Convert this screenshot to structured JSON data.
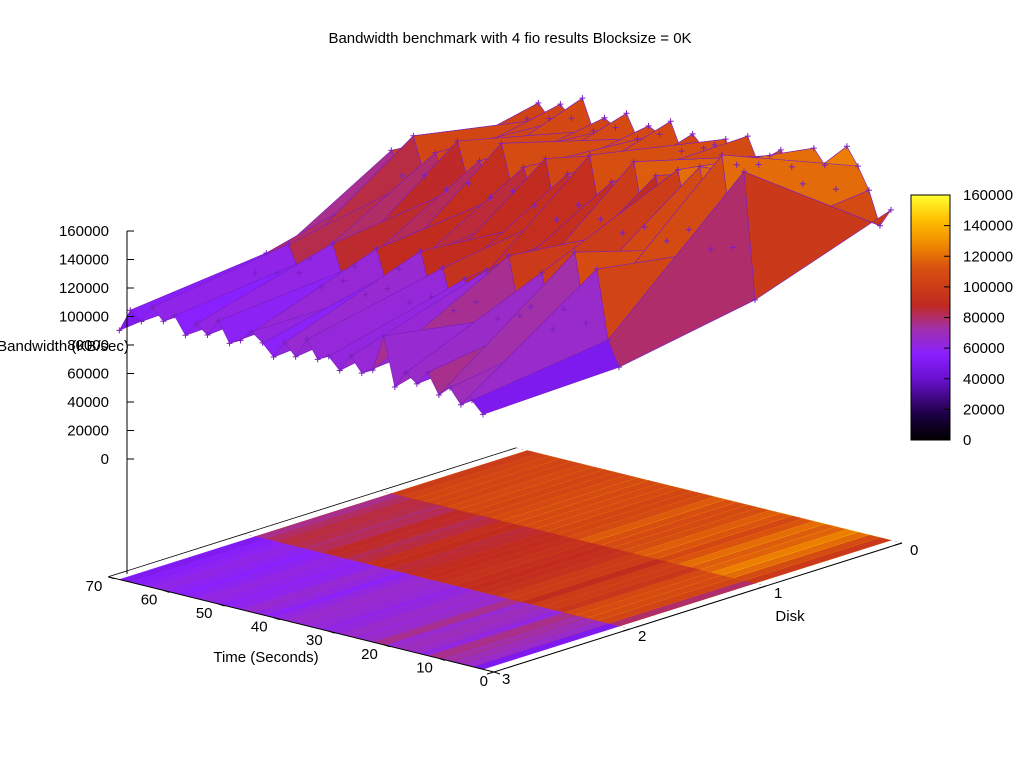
{
  "chart_data": {
    "type": "surface3d",
    "title": "Bandwidth benchmark with 4 fio results  Blocksize = 0K",
    "xlabel": "Time (Seconds)",
    "ylabel": "Disk",
    "zlabel": "Bandwidth (KB/sec)",
    "x_ticks": [
      "0",
      "10",
      "20",
      "30",
      "40",
      "50",
      "60",
      "70"
    ],
    "y_ticks": [
      "0",
      "1",
      "2",
      "3"
    ],
    "z_ticks": [
      "0",
      "20000",
      "40000",
      "60000",
      "80000",
      "100000",
      "120000",
      "140000",
      "160000"
    ],
    "colorbar_ticks": [
      "0",
      "20000",
      "40000",
      "60000",
      "80000",
      "100000",
      "120000",
      "140000",
      "160000"
    ],
    "xlim": [
      0,
      70
    ],
    "ylim": [
      0,
      3
    ],
    "zlim": [
      0,
      160000
    ],
    "palette": [
      "#000000",
      "#3a0070",
      "#6a10d0",
      "#8a20ff",
      "#a030b0",
      "#c03030",
      "#d85010",
      "#f08a00",
      "#ffc800",
      "#ffff30"
    ],
    "bottom_projection": true,
    "series": [
      {
        "disk": 0,
        "x": [
          2,
          4,
          6,
          8,
          10,
          12,
          14,
          16,
          18,
          20,
          22,
          24,
          26,
          28,
          30,
          32,
          34,
          36,
          38,
          40,
          42,
          44,
          46,
          48,
          50,
          52,
          54,
          56,
          58,
          60,
          62,
          64,
          66,
          68
        ],
        "values": [
          95000,
          82000,
          105000,
          120000,
          132000,
          100000,
          115000,
          125000,
          98000,
          108000,
          118000,
          112000,
          104000,
          122000,
          100000,
          116000,
          110000,
          106000,
          114000,
          100000,
          119000,
          108000,
          112000,
          101000,
          117000,
          105000,
          110000,
          99000,
          120000,
          104000,
          112000,
          100000,
          109000,
          96000
        ]
      },
      {
        "disk": 1,
        "x": [
          2,
          4,
          6,
          8,
          10,
          12,
          14,
          16,
          18,
          20,
          22,
          24,
          26,
          28,
          30,
          32,
          34,
          36,
          38,
          40,
          42,
          44,
          46,
          48,
          50,
          52,
          54,
          56,
          58,
          60,
          62,
          64,
          66,
          68
        ],
        "values": [
          62000,
          150000,
          95000,
          158000,
          90000,
          146000,
          100000,
          140000,
          88000,
          132000,
          94000,
          138000,
          86000,
          120000,
          92000,
          135000,
          98000,
          118000,
          84000,
          125000,
          90000,
          115000,
          96000,
          128000,
          88000,
          112000,
          94000,
          122000,
          86000,
          110000,
          92000,
          118000,
          88000,
          104000
        ]
      },
      {
        "disk": 2,
        "x": [
          2,
          4,
          6,
          8,
          10,
          12,
          14,
          16,
          18,
          20,
          22,
          24,
          26,
          28,
          30,
          32,
          34,
          36,
          38,
          40,
          42,
          44,
          46,
          48,
          50,
          52,
          54,
          56,
          58,
          60,
          62,
          64,
          66,
          68
        ],
        "values": [
          45000,
          62000,
          110000,
          70000,
          118000,
          76000,
          60000,
          98000,
          72000,
          64000,
          104000,
          58000,
          90000,
          66000,
          80000,
          56000,
          84000,
          62000,
          92000,
          54000,
          76000,
          60000,
          86000,
          52000,
          70000,
          58000,
          82000,
          50000,
          68000,
          56000,
          74000,
          52000,
          64000,
          48000
        ]
      },
      {
        "disk": 3,
        "x": [
          2,
          4,
          6,
          8,
          10,
          12,
          14,
          16,
          18,
          20,
          22,
          24,
          26,
          28,
          30,
          32,
          34,
          36,
          38,
          40,
          42,
          44,
          46,
          48,
          50,
          52,
          54,
          56,
          58,
          60,
          62,
          64,
          66,
          68
        ],
        "values": [
          42000,
          50000,
          45000,
          55000,
          48000,
          62000,
          52000,
          58000,
          46000,
          80000,
          54000,
          50000,
          60000,
          48000,
          56000,
          52000,
          64000,
          50000,
          58000,
          46000,
          54000,
          60000,
          52000,
          48000,
          62000,
          50000,
          56000,
          46000,
          58000,
          52000,
          60000,
          48000,
          54000,
          38000
        ]
      }
    ]
  }
}
